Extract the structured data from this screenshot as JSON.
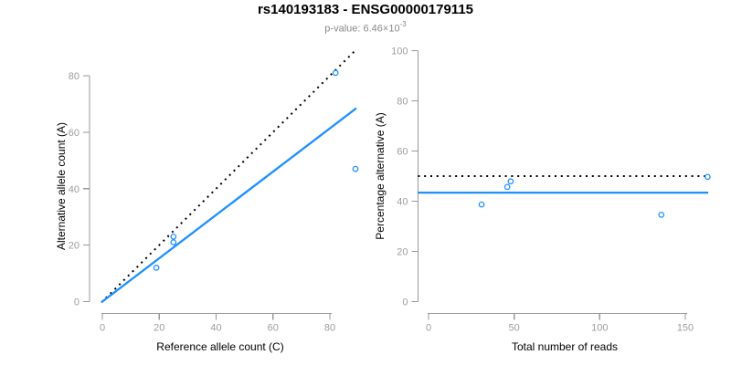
{
  "header": {
    "title": "rs140193183 - ENSG00000179115",
    "subtitle_prefix": "p-value: 6.46×10",
    "subtitle_exponent": "-3"
  },
  "colors": {
    "points": "#1E90FF",
    "fit_line": "#1E90FF",
    "reference_line": "#000000",
    "axis": "#999999",
    "tick_labels": "#9d9d9d",
    "axis_titles": "#000000",
    "title": "#000000",
    "subtitle": "#8a8a8a",
    "background": "#ffffff"
  },
  "chart_data": [
    {
      "type": "scatter",
      "panel": "allele-counts",
      "xlabel": "Reference allele count (C)",
      "ylabel": "Alternative allele count (A)",
      "xlim": [
        0,
        89
      ],
      "ylim": [
        0,
        89
      ],
      "xticks": [
        0,
        20,
        40,
        60,
        80
      ],
      "yticks": [
        0,
        20,
        40,
        60,
        80
      ],
      "grid": false,
      "legend": "none",
      "points": [
        [
          19,
          12
        ],
        [
          25,
          21
        ],
        [
          25,
          23
        ],
        [
          82,
          81
        ],
        [
          89,
          47
        ]
      ],
      "lines": [
        {
          "name": "identity",
          "style": "dotted",
          "color": "#000000",
          "slope": 1,
          "intercept": 0
        },
        {
          "name": "fit",
          "style": "solid",
          "color": "#1E90FF",
          "slope": 0.767,
          "intercept": 0
        }
      ]
    },
    {
      "type": "scatter",
      "panel": "percentage-vs-coverage",
      "xlabel": "Total number of reads",
      "ylabel": "Percentage alternative (A)",
      "xlim": [
        0,
        163
      ],
      "ylim": [
        0,
        100
      ],
      "xticks": [
        0,
        50,
        100,
        150
      ],
      "yticks": [
        0,
        20,
        40,
        60,
        80,
        100
      ],
      "grid": false,
      "legend": "none",
      "points": [
        [
          31,
          38.7
        ],
        [
          46,
          45.7
        ],
        [
          48,
          47.9
        ],
        [
          136,
          34.6
        ],
        [
          163,
          49.7
        ]
      ],
      "lines": [
        {
          "name": "expected-50pct",
          "style": "dotted",
          "color": "#000000",
          "slope": 0,
          "intercept": 50
        },
        {
          "name": "observed-mean",
          "style": "solid",
          "color": "#1E90FF",
          "slope": 0,
          "intercept": 43.4
        }
      ]
    }
  ]
}
